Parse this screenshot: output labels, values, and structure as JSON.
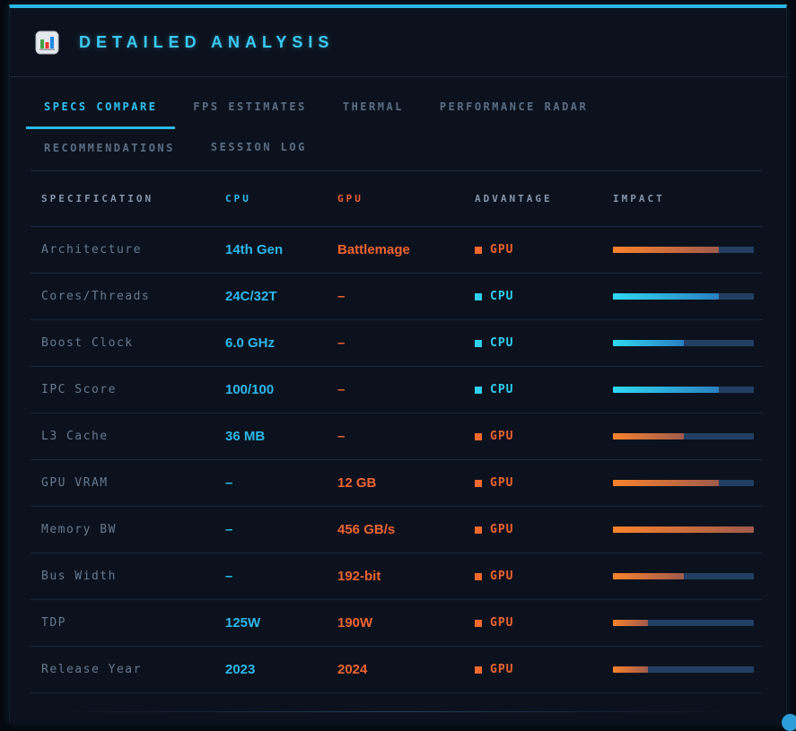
{
  "header": {
    "title": "DETAILED ANALYSIS",
    "icon": "bar-chart-icon"
  },
  "tabs": [
    {
      "label": "SPECS COMPARE",
      "active": true
    },
    {
      "label": "FPS ESTIMATES",
      "active": false
    },
    {
      "label": "THERMAL",
      "active": false
    },
    {
      "label": "PERFORMANCE RADAR",
      "active": false
    },
    {
      "label": "RECOMMENDATIONS",
      "active": false
    },
    {
      "label": "SESSION LOG",
      "active": false
    }
  ],
  "table": {
    "columns": [
      "SPECIFICATION",
      "CPU",
      "GPU",
      "ADVANTAGE",
      "IMPACT"
    ],
    "rows": [
      {
        "spec": "Architecture",
        "cpu": "14th Gen",
        "gpu": "Battlemage",
        "advantage": "GPU",
        "impact_pct": 75
      },
      {
        "spec": "Cores/Threads",
        "cpu": "24C/32T",
        "gpu": "–",
        "advantage": "CPU",
        "impact_pct": 75
      },
      {
        "spec": "Boost Clock",
        "cpu": "6.0 GHz",
        "gpu": "–",
        "advantage": "CPU",
        "impact_pct": 50
      },
      {
        "spec": "IPC Score",
        "cpu": "100/100",
        "gpu": "–",
        "advantage": "CPU",
        "impact_pct": 75
      },
      {
        "spec": "L3 Cache",
        "cpu": "36 MB",
        "gpu": "–",
        "advantage": "GPU",
        "impact_pct": 50
      },
      {
        "spec": "GPU VRAM",
        "cpu": "–",
        "gpu": "12 GB",
        "advantage": "GPU",
        "impact_pct": 75
      },
      {
        "spec": "Memory BW",
        "cpu": "–",
        "gpu": "456 GB/s",
        "advantage": "GPU",
        "impact_pct": 100
      },
      {
        "spec": "Bus Width",
        "cpu": "–",
        "gpu": "192-bit",
        "advantage": "GPU",
        "impact_pct": 50
      },
      {
        "spec": "TDP",
        "cpu": "125W",
        "gpu": "190W",
        "advantage": "GPU",
        "impact_pct": 25
      },
      {
        "spec": "Release Year",
        "cpu": "2023",
        "gpu": "2024",
        "advantage": "GPU",
        "impact_pct": 25
      }
    ]
  },
  "colors": {
    "accent_cyan": "#2fc4f0",
    "accent_orange": "#ef6332",
    "panel_bg": "#0c121d",
    "top_border": "#2bb7e5",
    "bar_track": "#223f63",
    "bar_cpu_gradient": [
      "#2fd8f2",
      "#2a7fc0"
    ],
    "bar_gpu_gradient": [
      "#f9822c",
      "#a05a4c"
    ],
    "muted_text": "#66798f"
  }
}
